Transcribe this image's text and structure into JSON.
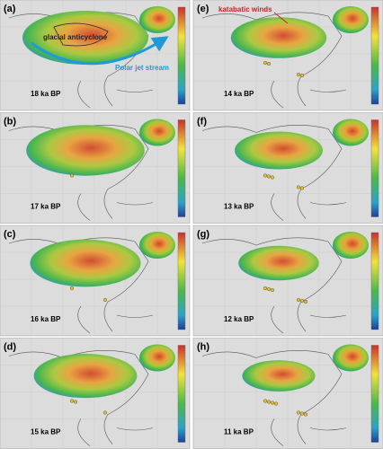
{
  "panels": [
    {
      "label": "(a)",
      "time": "18 ka BP",
      "annotations": [
        "glacial anticyclone",
        "Polar jet stream"
      ]
    },
    {
      "label": "(b)",
      "time": "17 ka BP"
    },
    {
      "label": "(c)",
      "time": "16 ka BP"
    },
    {
      "label": "(d)",
      "time": "15 ka BP"
    },
    {
      "label": "(e)",
      "time": "14 ka BP",
      "annotations": [
        "katabatic winds"
      ]
    },
    {
      "label": "(f)",
      "time": "13 ka BP"
    },
    {
      "label": "(g)",
      "time": "12 ka BP"
    },
    {
      "label": "(h)",
      "time": "11 ka BP"
    }
  ]
}
